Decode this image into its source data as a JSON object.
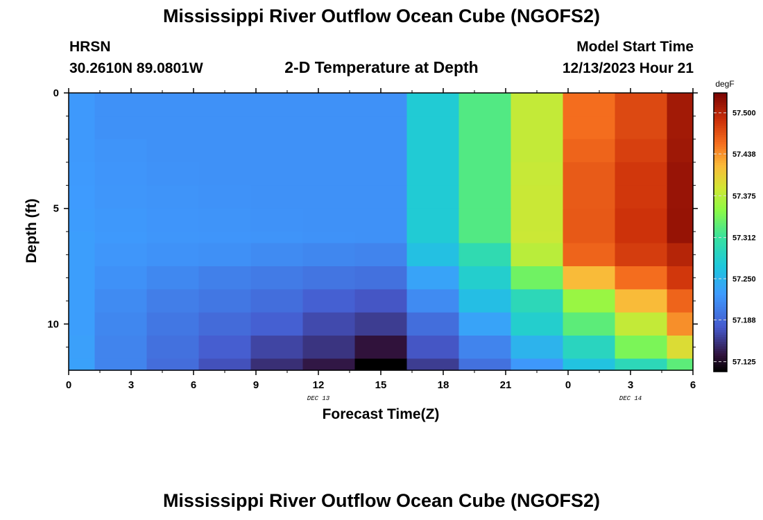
{
  "header": {
    "main_title": "Mississippi River Outflow Ocean Cube (NGOFS2)",
    "station_id": "HRSN",
    "coordinates": "30.2610N  89.0801W",
    "plot_title": "2-D Temperature at Depth",
    "model_start_label": "Model Start Time",
    "model_start_value": "12/13/2023 Hour 21"
  },
  "footer": {
    "repeated_title": "Mississippi River Outflow Ocean Cube (NGOFS2)"
  },
  "chart_data": {
    "type": "heatmap",
    "title": "2-D Temperature at Depth",
    "xlabel": "Forecast Time(Z)",
    "ylabel": "Depth (ft)",
    "x_tick_labels": [
      "0",
      "3",
      "6",
      "9",
      "12",
      "15",
      "18",
      "21",
      "0",
      "3",
      "6"
    ],
    "x_date_labels": [
      {
        "text": "DEC 13",
        "at_tick": 4
      },
      {
        "text": "DEC 14",
        "at_tick": 9
      }
    ],
    "xlim": [
      0,
      30
    ],
    "x_col_edges": [
      0,
      1.25,
      3.75,
      6.25,
      8.75,
      11.25,
      13.75,
      16.25,
      18.75,
      21.25,
      23.75,
      26.25,
      28.75,
      30
    ],
    "y_tick_labels": [
      "0",
      "5",
      "10"
    ],
    "y_tick_values": [
      0,
      5,
      10
    ],
    "ylim": [
      0,
      12
    ],
    "y_row_edges": [
      0,
      1,
      2,
      3,
      4,
      5,
      6,
      6.5,
      7.5,
      8.5,
      9.5,
      10.5,
      11.5,
      12
    ],
    "colorbar": {
      "units": "degF",
      "range": [
        57.11,
        57.53
      ],
      "tick_values": [
        57.125,
        57.188,
        57.25,
        57.312,
        57.375,
        57.438,
        57.5
      ],
      "tick_labels": [
        "57.125",
        "57.188",
        "57.250",
        "57.312",
        "57.375",
        "57.438",
        "57.500"
      ]
    },
    "values": [
      [
        57.226,
        57.22,
        57.22,
        57.22,
        57.22,
        57.22,
        57.22,
        57.275,
        57.325,
        57.38,
        57.455,
        57.475,
        57.51
      ],
      [
        57.226,
        57.22,
        57.22,
        57.22,
        57.22,
        57.22,
        57.22,
        57.275,
        57.325,
        57.38,
        57.455,
        57.475,
        57.51
      ],
      [
        57.226,
        57.222,
        57.22,
        57.22,
        57.22,
        57.22,
        57.22,
        57.275,
        57.325,
        57.38,
        57.46,
        57.48,
        57.512
      ],
      [
        57.227,
        57.223,
        57.221,
        57.22,
        57.22,
        57.22,
        57.22,
        57.275,
        57.325,
        57.382,
        57.465,
        57.485,
        57.515
      ],
      [
        57.228,
        57.224,
        57.222,
        57.221,
        57.22,
        57.22,
        57.22,
        57.275,
        57.325,
        57.383,
        57.465,
        57.485,
        57.515
      ],
      [
        57.229,
        57.225,
        57.223,
        57.222,
        57.221,
        57.22,
        57.22,
        57.275,
        57.325,
        57.383,
        57.466,
        57.488,
        57.516
      ],
      [
        57.23,
        57.226,
        57.224,
        57.223,
        57.222,
        57.221,
        57.22,
        57.275,
        57.325,
        57.384,
        57.466,
        57.488,
        57.516
      ],
      [
        57.23,
        57.224,
        57.221,
        57.219,
        57.215,
        57.212,
        57.21,
        57.262,
        57.3,
        57.375,
        57.46,
        57.482,
        57.5
      ],
      [
        57.23,
        57.22,
        57.213,
        57.207,
        57.203,
        57.198,
        57.195,
        57.235,
        57.28,
        57.34,
        57.42,
        57.455,
        57.485
      ],
      [
        57.23,
        57.215,
        57.205,
        57.2,
        57.193,
        57.182,
        57.175,
        57.215,
        57.26,
        57.295,
        57.36,
        57.42,
        57.46
      ],
      [
        57.23,
        57.212,
        57.2,
        57.19,
        57.182,
        57.168,
        57.16,
        57.193,
        57.235,
        57.28,
        57.33,
        57.38,
        57.44
      ],
      [
        57.232,
        57.21,
        57.195,
        57.18,
        57.165,
        57.155,
        57.135,
        57.175,
        57.21,
        57.25,
        57.29,
        57.345,
        57.395
      ],
      [
        57.233,
        57.21,
        57.192,
        57.172,
        57.152,
        57.138,
        57.108,
        57.16,
        57.195,
        57.225,
        57.265,
        57.295,
        57.33
      ]
    ]
  }
}
